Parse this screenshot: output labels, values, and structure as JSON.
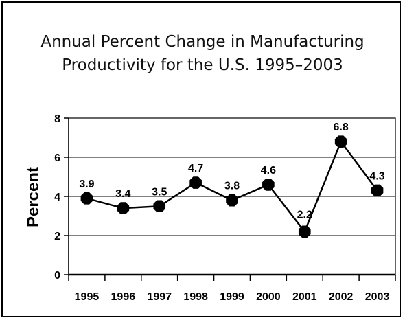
{
  "chart_data": {
    "type": "line",
    "title_line1": "Annual Percent Change in Manufacturing",
    "title_line2": "Productivity for the U.S. 1995–2003",
    "xlabel": "",
    "ylabel": "Percent",
    "categories": [
      "1995",
      "1996",
      "1997",
      "1998",
      "1999",
      "2000",
      "2001",
      "2002",
      "2003"
    ],
    "values": [
      3.9,
      3.4,
      3.5,
      4.7,
      3.8,
      4.6,
      2.2,
      6.8,
      4.3
    ],
    "value_labels": [
      "3.9",
      "3.4",
      "3.5",
      "4.7",
      "3.8",
      "4.6",
      "2.2",
      "6.8",
      "4.3"
    ],
    "ylim": [
      0,
      8
    ],
    "yticks": [
      "0",
      "2",
      "4",
      "6",
      "8"
    ],
    "grid": true,
    "marker": "octagon",
    "line_color": "#000000",
    "marker_color": "#000000"
  }
}
